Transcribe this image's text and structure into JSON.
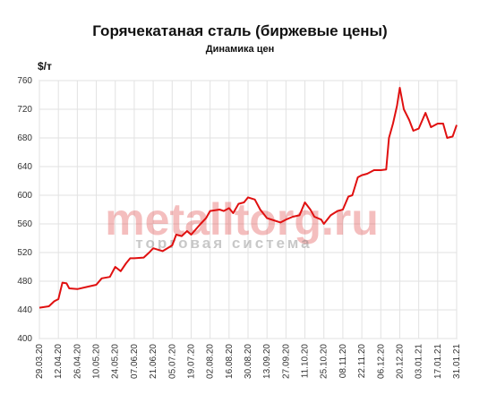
{
  "chart_data": {
    "type": "line",
    "title": "Горячекатаная сталь (биржевые цены)",
    "subtitle": "Динамика цен",
    "y_label": "$/т",
    "watermark": "metalltorg.ru",
    "watermark_sub": "торговая система",
    "color": "#e01010",
    "grid": true,
    "x": [
      "29.03.20",
      "05.04.20",
      "09.04.20",
      "12.04.20",
      "15.04.20",
      "18.04.20",
      "20.04.20",
      "26.04.20",
      "03.05.20",
      "10.05.20",
      "14.05.20",
      "20.05.20",
      "24.05.20",
      "28.05.20",
      "01.06.20",
      "04.06.20",
      "07.06.20",
      "14.06.20",
      "18.06.20",
      "21.06.20",
      "28.06.20",
      "05.07.20",
      "08.07.20",
      "12.07.20",
      "16.07.20",
      "19.07.20",
      "26.07.20",
      "30.07.20",
      "02.08.20",
      "09.08.20",
      "12.08.20",
      "16.08.20",
      "19.08.20",
      "23.08.20",
      "27.08.20",
      "30.08.20",
      "04.09.20",
      "08.09.20",
      "13.09.20",
      "18.09.20",
      "23.09.20",
      "27.09.20",
      "02.10.20",
      "07.10.20",
      "11.10.20",
      "15.10.20",
      "18.10.20",
      "23.10.20",
      "25.10.20",
      "30.10.20",
      "04.11.20",
      "08.11.20",
      "12.11.20",
      "15.11.20",
      "19.11.20",
      "22.11.20",
      "26.11.20",
      "01.12.20",
      "06.12.20",
      "10.12.20",
      "12.12.20",
      "15.12.20",
      "18.12.20",
      "20.12.20",
      "23.12.20",
      "27.12.20",
      "30.12.20",
      "03.01.21",
      "08.01.21",
      "12.01.21",
      "17.01.21",
      "21.01.21",
      "24.01.21",
      "28.01.21",
      "31.01.21"
    ],
    "values": [
      443,
      445,
      452,
      455,
      478,
      477,
      470,
      469,
      472,
      475,
      484,
      486,
      500,
      494,
      505,
      512,
      512,
      513,
      520,
      526,
      522,
      530,
      545,
      543,
      550,
      545,
      560,
      568,
      578,
      580,
      578,
      582,
      575,
      588,
      590,
      597,
      594,
      580,
      568,
      565,
      562,
      566,
      570,
      572,
      590,
      580,
      570,
      566,
      560,
      572,
      578,
      580,
      598,
      600,
      625,
      628,
      630,
      635,
      635,
      636,
      680,
      700,
      725,
      750,
      720,
      705,
      690,
      693,
      715,
      695,
      700,
      700,
      680,
      682,
      698
    ],
    "xlim": [
      "29.03.20",
      "31.01.21"
    ],
    "xticks": [
      "29.03.20",
      "12.04.20",
      "26.04.20",
      "10.05.20",
      "24.05.20",
      "07.06.20",
      "21.06.20",
      "05.07.20",
      "19.07.20",
      "02.08.20",
      "16.08.20",
      "30.08.20",
      "13.09.20",
      "27.09.20",
      "11.10.20",
      "25.10.20",
      "08.11.20",
      "22.11.20",
      "06.12.20",
      "20.12.20",
      "03.01.21",
      "17.01.21",
      "31.01.21"
    ],
    "ylim": [
      400,
      760
    ],
    "yticks": [
      400,
      440,
      480,
      520,
      560,
      600,
      640,
      680,
      720,
      760
    ]
  }
}
